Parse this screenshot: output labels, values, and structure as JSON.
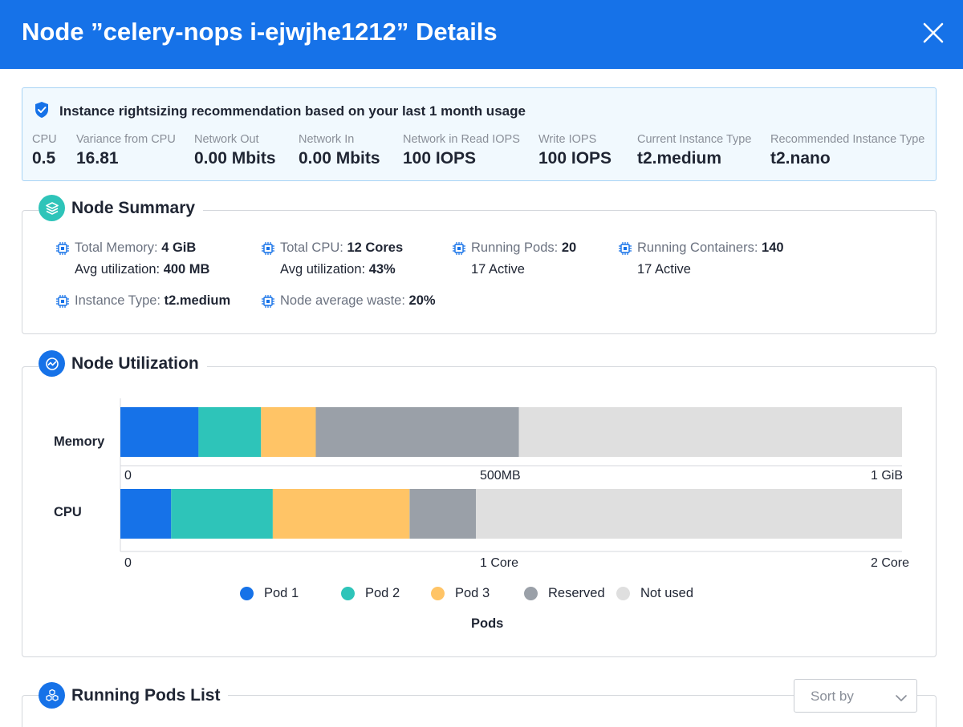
{
  "header": {
    "title": "Node ”celery-nops i-ejwjhe1212” Details",
    "close_icon": "close-icon"
  },
  "recommendation": {
    "icon": "shield-check-icon",
    "title": "Instance rightsizing recommendation based on your last 1 month usage",
    "metrics": [
      {
        "label": "CPU",
        "value": "0.5"
      },
      {
        "label": "Variance from CPU",
        "value": "16.81"
      },
      {
        "label": "Network Out",
        "value": "0.00 Mbits"
      },
      {
        "label": "Network In",
        "value": "0.00 Mbits"
      },
      {
        "label": "Network in Read IOPS",
        "value": "100 IOPS"
      },
      {
        "label": "Write IOPS",
        "value": "100 IOPS"
      },
      {
        "label": "Current Instance Type",
        "value": "t2.medium"
      },
      {
        "label": "Recommended Instance Type",
        "value": "t2.nano"
      }
    ]
  },
  "node_summary": {
    "title": "Node Summary",
    "icon": "layers-icon",
    "stats": {
      "total_memory": {
        "label": "Total Memory: ",
        "value": "4 GiB",
        "sub_label": "Avg utilization: ",
        "sub_value": "400 MB"
      },
      "total_cpu": {
        "label": "Total CPU: ",
        "value": "12 Cores",
        "sub_label": "Avg utilization: ",
        "sub_value": "43%"
      },
      "running_pods": {
        "label": "Running Pods: ",
        "value": "20",
        "sub": "17 Active"
      },
      "running_containers": {
        "label": "Running Containers: ",
        "value": "140",
        "sub": "17 Active"
      },
      "instance_type": {
        "label": "Instance Type: ",
        "value": "t2.medium"
      },
      "node_waste": {
        "label": "Node average waste: ",
        "value": "20%"
      }
    },
    "stat_icon": "cpu-chip-icon"
  },
  "node_utilization": {
    "title": "Node Utilization",
    "icon": "activity-icon",
    "memory_label": "Memory",
    "cpu_label": "CPU",
    "memory_axis": [
      "0",
      "500MB",
      "1 GiB"
    ],
    "cpu_axis": [
      "0",
      "1 Core",
      "2 Core"
    ],
    "legend_title": "Pods"
  },
  "chart_data": {
    "type": "bar",
    "orientation": "horizontal",
    "stacked": true,
    "categories": [
      "Memory",
      "CPU"
    ],
    "series": [
      {
        "name": "Pod 1",
        "color": "#1672e8",
        "values": [
          0.1,
          0.13
        ]
      },
      {
        "name": "Pod 2",
        "color": "#2ec4b9",
        "values": [
          0.08,
          0.26
        ]
      },
      {
        "name": "Pod 3",
        "color": "#ffc466",
        "values": [
          0.07,
          0.35
        ]
      },
      {
        "name": "Reserved",
        "color": "#9aa0a8",
        "values": [
          0.26,
          0.17
        ]
      },
      {
        "name": "Not used",
        "color": "#dfdfdf",
        "values": [
          0.49,
          1.09
        ]
      }
    ],
    "units": [
      "GiB",
      "Core"
    ],
    "ranges": [
      [
        0,
        1
      ],
      [
        0,
        2
      ]
    ],
    "xlabel": "Pods"
  },
  "pods_list": {
    "title": "Running Pods List",
    "icon": "cubes-icon",
    "sort_label": "Sort by",
    "sort_icon": "chevron-down-icon"
  }
}
